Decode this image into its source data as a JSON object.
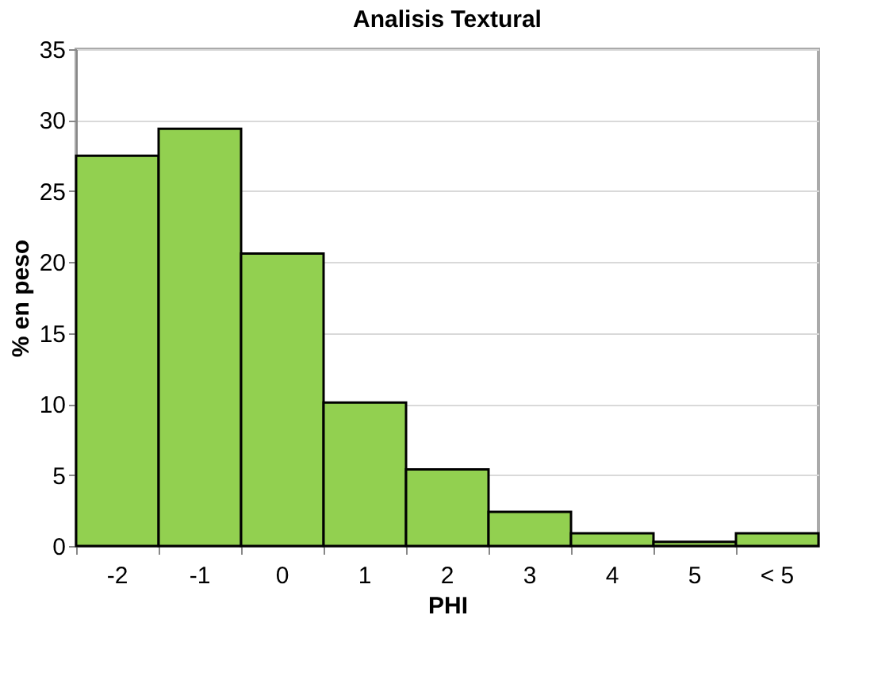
{
  "chart_data": {
    "type": "bar",
    "title": "Analisis Textural",
    "xlabel": "PHI",
    "ylabel": "% en peso",
    "categories": [
      "-2",
      "-1",
      "0",
      "1",
      "2",
      "3",
      "4",
      "5",
      "< 5"
    ],
    "values": [
      27.5,
      29.4,
      20.6,
      10.1,
      5.4,
      2.4,
      0.9,
      0.3,
      0.9
    ],
    "color": "#92d050",
    "ylim": [
      0,
      35
    ],
    "yticks": [
      0,
      5,
      10,
      15,
      20,
      25,
      30,
      35
    ],
    "grid": "y"
  }
}
